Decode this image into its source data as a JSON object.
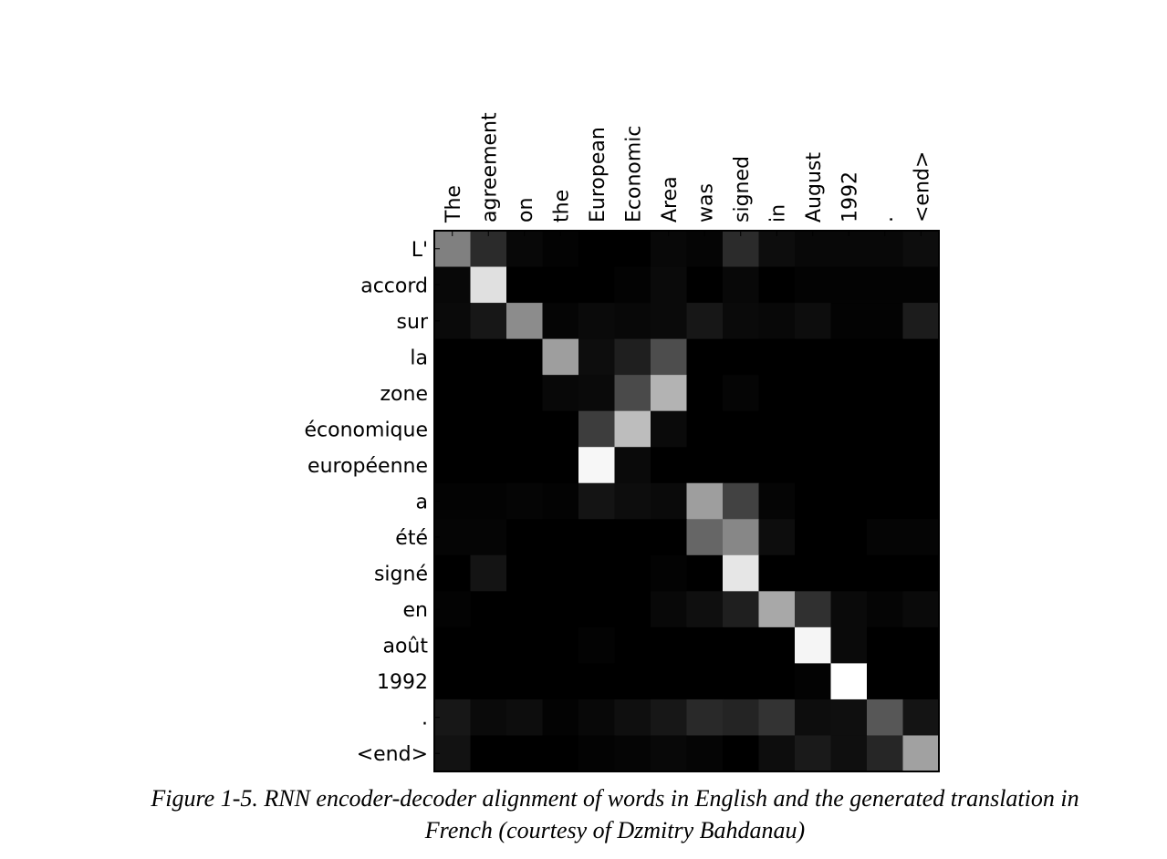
{
  "chart_data": {
    "type": "heatmap",
    "x_labels": [
      "The",
      "agreement",
      "on",
      "the",
      "European",
      "Economic",
      "Area",
      "was",
      "signed",
      "in",
      "August",
      "1992",
      ".",
      "<end>"
    ],
    "y_labels": [
      "L'",
      "accord",
      "sur",
      "la",
      "zone",
      "économique",
      "européenne",
      "a",
      "été",
      "signé",
      "en",
      "août",
      "1992",
      ".",
      "<end>"
    ],
    "values": [
      [
        0.5,
        0.17,
        0.03,
        0.01,
        0.0,
        0.0,
        0.03,
        0.02,
        0.17,
        0.05,
        0.03,
        0.03,
        0.03,
        0.05
      ],
      [
        0.03,
        0.88,
        0.0,
        0.0,
        0.0,
        0.01,
        0.04,
        0.0,
        0.03,
        0.0,
        0.01,
        0.01,
        0.01,
        0.01
      ],
      [
        0.04,
        0.09,
        0.55,
        0.02,
        0.04,
        0.03,
        0.04,
        0.09,
        0.04,
        0.03,
        0.05,
        0.01,
        0.01,
        0.11
      ],
      [
        0.0,
        0.0,
        0.0,
        0.62,
        0.05,
        0.12,
        0.3,
        0.0,
        0.0,
        0.0,
        0.0,
        0.0,
        0.0,
        0.0
      ],
      [
        0.0,
        0.0,
        0.0,
        0.03,
        0.04,
        0.29,
        0.7,
        0.0,
        0.02,
        0.0,
        0.0,
        0.0,
        0.0,
        0.0
      ],
      [
        0.0,
        0.0,
        0.0,
        0.0,
        0.24,
        0.74,
        0.04,
        0.0,
        0.0,
        0.0,
        0.0,
        0.0,
        0.0,
        0.0
      ],
      [
        0.0,
        0.0,
        0.0,
        0.0,
        0.97,
        0.04,
        0.0,
        0.0,
        0.0,
        0.0,
        0.0,
        0.0,
        0.0,
        0.0
      ],
      [
        0.01,
        0.01,
        0.02,
        0.01,
        0.08,
        0.05,
        0.04,
        0.62,
        0.26,
        0.02,
        0.0,
        0.0,
        0.0,
        0.0
      ],
      [
        0.02,
        0.02,
        0.0,
        0.0,
        0.0,
        0.0,
        0.0,
        0.4,
        0.53,
        0.05,
        0.0,
        0.0,
        0.02,
        0.02
      ],
      [
        0.0,
        0.08,
        0.0,
        0.0,
        0.0,
        0.0,
        0.01,
        0.0,
        0.9,
        0.0,
        0.0,
        0.0,
        0.0,
        0.0
      ],
      [
        0.01,
        0.0,
        0.0,
        0.0,
        0.0,
        0.0,
        0.03,
        0.06,
        0.12,
        0.66,
        0.19,
        0.04,
        0.02,
        0.04
      ],
      [
        0.0,
        0.0,
        0.0,
        0.0,
        0.01,
        0.0,
        0.0,
        0.0,
        0.0,
        0.0,
        0.96,
        0.04,
        0.0,
        0.0
      ],
      [
        0.0,
        0.0,
        0.0,
        0.0,
        0.0,
        0.0,
        0.0,
        0.0,
        0.0,
        0.0,
        0.01,
        1.0,
        0.0,
        0.0
      ],
      [
        0.09,
        0.04,
        0.05,
        0.01,
        0.03,
        0.06,
        0.09,
        0.16,
        0.14,
        0.2,
        0.05,
        0.06,
        0.34,
        0.08
      ],
      [
        0.07,
        0.0,
        0.0,
        0.0,
        0.01,
        0.02,
        0.03,
        0.02,
        0.0,
        0.05,
        0.1,
        0.06,
        0.15,
        0.63
      ]
    ],
    "value_range": [
      0,
      1
    ],
    "colormap": [
      "#000000",
      "#ffffff"
    ],
    "grid": false
  },
  "caption": {
    "line1": "Figure 1-5. RNN encoder-decoder alignment of words in English and the generated translation in",
    "line2": "French (courtesy of Dzmitry Bahdanau)"
  }
}
